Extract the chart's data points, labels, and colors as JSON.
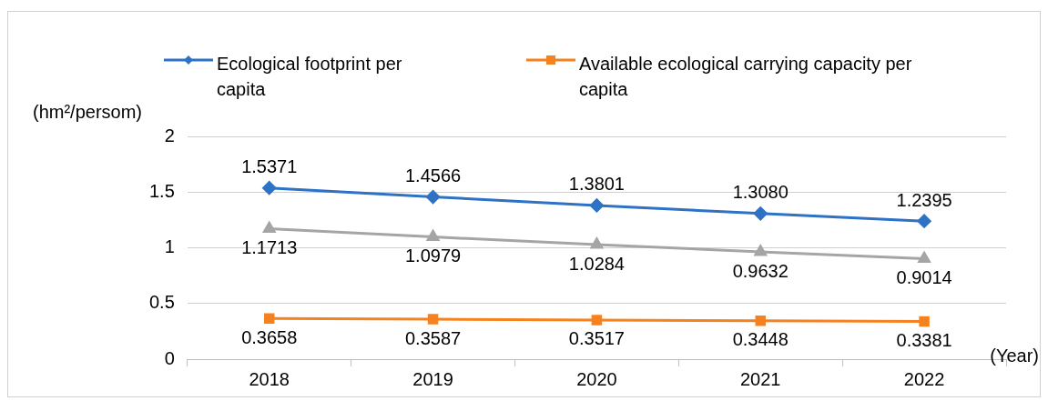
{
  "chart_data": {
    "type": "line",
    "ylabel": "(hm²/persom)",
    "xlabel": "(Year)",
    "categories": [
      "2018",
      "2019",
      "2020",
      "2021",
      "2022"
    ],
    "series": [
      {
        "name": "Ecological footprint per capita",
        "color": "#2e72c6",
        "marker": "diamond",
        "values": [
          1.5371,
          1.4566,
          1.3801,
          1.308,
          1.2395
        ],
        "value_labels": [
          "1.5371",
          "1.4566",
          "1.3801",
          "1.3080",
          "1.2395"
        ]
      },
      {
        "color": "#a5a5a5",
        "marker": "triangle",
        "values": [
          1.1713,
          1.0979,
          1.0284,
          0.9632,
          0.9014
        ],
        "value_labels": [
          "1.1713",
          "1.0979",
          "1.0284",
          "0.9632",
          "0.9014"
        ]
      },
      {
        "name": "Available ecological carrying capacity per capita",
        "color": "#f5821f",
        "marker": "square",
        "values": [
          0.3658,
          0.3587,
          0.3517,
          0.3448,
          0.3381
        ],
        "value_labels": [
          "0.3658",
          "0.3587",
          "0.3517",
          "0.3448",
          "0.3381"
        ]
      }
    ],
    "ylim": [
      0,
      2
    ],
    "yticks": [
      0,
      0.5,
      1,
      1.5,
      2
    ],
    "grid": "y",
    "legend": "top",
    "line_style": "solid"
  }
}
